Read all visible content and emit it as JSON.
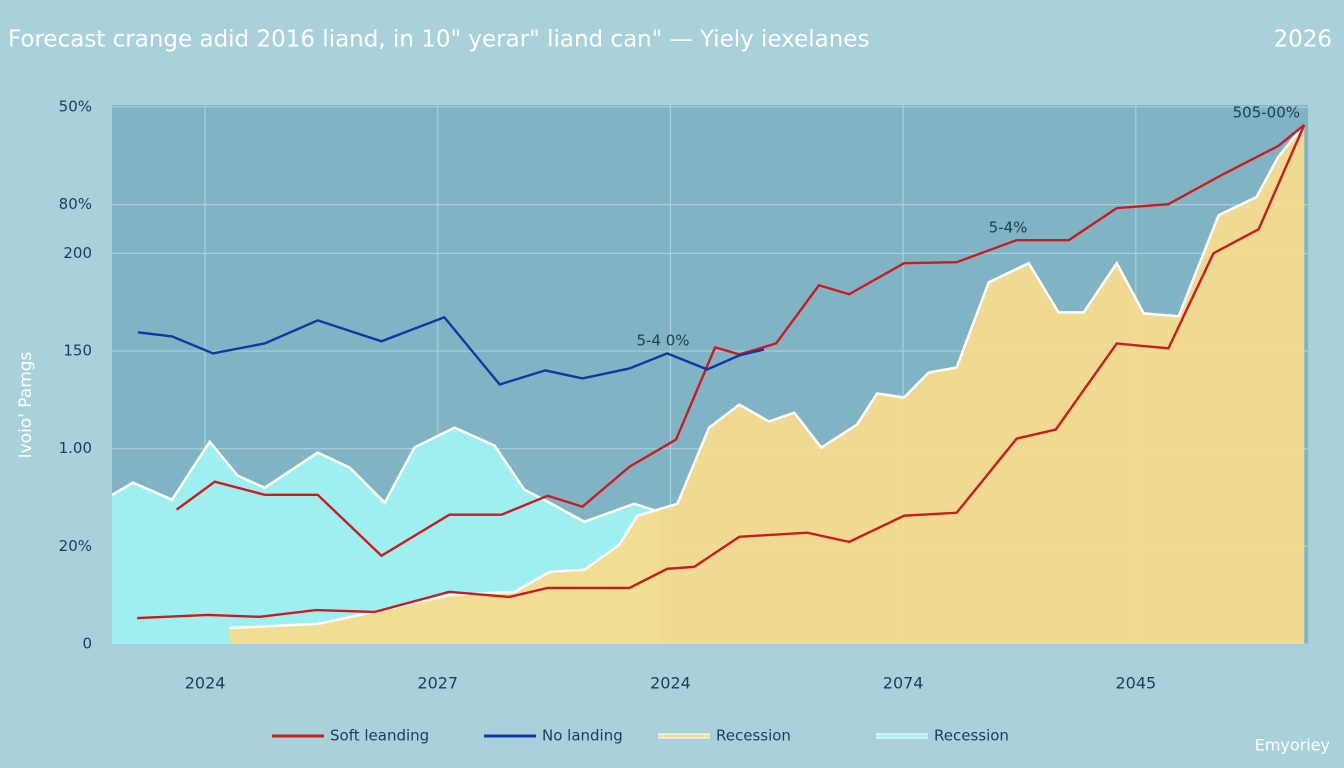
{
  "chart_data": {
    "type": "line",
    "title": "Forecast crange adid 2016 liand, in 10\" yerar\" liand can\" — Yiely iexelanes",
    "subtitle": "2026",
    "y_label": "Ivoio' Pamgs",
    "footer": "Emyoriey",
    "annotations": [
      "5-4 0%",
      "5-4%",
      "505-00%"
    ],
    "xlim": [
      0,
      25.7
    ],
    "xticks": [
      {
        "value": 2,
        "label": "2024"
      },
      {
        "value": 7,
        "label": "2027"
      },
      {
        "value": 12,
        "label": "2024"
      },
      {
        "value": 17,
        "label": "2074"
      },
      {
        "value": 22,
        "label": "2045"
      }
    ],
    "ylim": [
      0,
      276
    ],
    "yticks": [
      0,
      {
        "value": 50,
        "label": "20%"
      },
      {
        "value": 100,
        "label": "1.00"
      },
      150,
      200,
      {
        "value": 225,
        "label": "80%"
      },
      {
        "value": 275,
        "label": "50%"
      }
    ],
    "grid": true,
    "legend": "bottom",
    "series": [
      {
        "name": "Recession",
        "type": "area",
        "color": "#9ff3f2",
        "x": [
          0,
          0.45,
          1.29,
          2.1,
          2.7,
          3.28,
          4.42,
          5.11,
          5.86,
          6.5,
          7.36,
          8.22,
          8.86,
          9.36,
          10.15,
          11.22,
          11.76
        ],
        "values": [
          76.4,
          82.6,
          73.9,
          103.6,
          86.2,
          80.0,
          98.0,
          90.3,
          72.3,
          100.6,
          110.8,
          101.6,
          79.0,
          72.9,
          62.6,
          71.8,
          67.7
        ]
      },
      {
        "name": "Recession",
        "type": "area",
        "color": "#f6dc8e",
        "x": [
          2.53,
          4.42,
          5.64,
          7.25,
          8.65,
          9.4,
          10.15,
          10.9,
          11.29,
          12.15,
          12.83,
          13.48,
          14.12,
          14.66,
          15.24,
          16.01,
          16.44,
          17.02,
          17.55,
          18.15,
          18.84,
          19.7,
          20.34,
          20.88,
          21.59,
          22.17,
          22.92,
          23.78,
          24.59,
          25.06,
          25.62
        ],
        "values": [
          8.2,
          10.3,
          16.4,
          25.1,
          26.7,
          36.9,
          38.0,
          50.8,
          65.7,
          71.8,
          110.8,
          122.6,
          113.9,
          118.5,
          100.6,
          112.4,
          128.3,
          126.2,
          139.0,
          141.6,
          185.2,
          195.0,
          169.8,
          169.8,
          195.0,
          169.3,
          167.8,
          219.6,
          228.8,
          249.4,
          265.8
        ]
      },
      {
        "name": "Soft leanding",
        "type": "line",
        "color": "#cc1a1e",
        "x": [
          1.39,
          2.21,
          3.28,
          4.42,
          5.79,
          7.25,
          8.37,
          9.36,
          10.11,
          11.12,
          12.12,
          12.96,
          13.48,
          14.27,
          15.19,
          15.84,
          17.02,
          18.15,
          19.44,
          20.56,
          21.59,
          22.7,
          23.88,
          25.06,
          25.62
        ],
        "values": [
          68.8,
          83.1,
          76.4,
          76.4,
          45.2,
          66.2,
          66.2,
          75.9,
          70.3,
          90.8,
          104.7,
          151.9,
          148.3,
          153.9,
          183.7,
          179.1,
          195.0,
          195.5,
          206.8,
          206.8,
          223.2,
          225.2,
          240.6,
          255.0,
          265.8
        ]
      },
      {
        "type": "line",
        "color": "#cc1a1e",
        "x": [
          0.54,
          2.06,
          3.18,
          4.38,
          5.64,
          7.25,
          8.54,
          9.36,
          11.12,
          11.93,
          12.51,
          13.48,
          14.94,
          15.84,
          17.02,
          18.15,
          19.44,
          20.28,
          21.59,
          22.7,
          23.67,
          24.64,
          25.62
        ],
        "values": [
          13.3,
          14.9,
          13.9,
          17.4,
          16.4,
          26.7,
          24.1,
          28.7,
          28.7,
          38.5,
          39.5,
          54.9,
          57.0,
          52.3,
          65.7,
          67.2,
          105.2,
          109.8,
          153.9,
          151.4,
          200.1,
          212.4,
          265.8
        ]
      },
      {
        "name": "No landing",
        "type": "line",
        "color": "#1436a0",
        "x": [
          0.56,
          1.29,
          2.17,
          3.28,
          4.42,
          5.79,
          7.14,
          8.33,
          9.31,
          10.11,
          11.12,
          11.93,
          12.79,
          13.48,
          14.01
        ],
        "values": [
          159.6,
          157.5,
          148.8,
          153.9,
          165.7,
          155.0,
          167.3,
          132.9,
          140.1,
          136.0,
          141.1,
          148.8,
          140.6,
          147.8,
          150.8
        ]
      }
    ]
  }
}
